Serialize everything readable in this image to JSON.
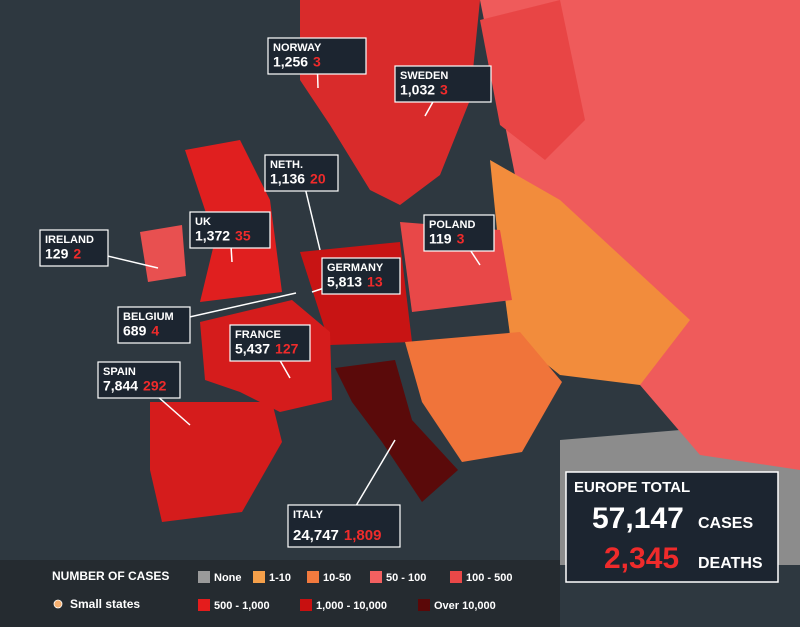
{
  "callouts": [
    {
      "name": "NORWAY",
      "cases": "1,256",
      "deaths": "3"
    },
    {
      "name": "SWEDEN",
      "cases": "1,032",
      "deaths": "3"
    },
    {
      "name": "NETH.",
      "cases": "1,136",
      "deaths": "20"
    },
    {
      "name": "UK",
      "cases": "1,372",
      "deaths": "35"
    },
    {
      "name": "IRELAND",
      "cases": "129",
      "deaths": "2"
    },
    {
      "name": "POLAND",
      "cases": "119",
      "deaths": "3"
    },
    {
      "name": "GERMANY",
      "cases": "5,813",
      "deaths": "13"
    },
    {
      "name": "BELGIUM",
      "cases": "689",
      "deaths": "4"
    },
    {
      "name": "FRANCE",
      "cases": "5,437",
      "deaths": "127"
    },
    {
      "name": "SPAIN",
      "cases": "7,844",
      "deaths": "292"
    },
    {
      "name": "ITALY",
      "cases": "24,747",
      "deaths": "1,809"
    }
  ],
  "total": {
    "title": "EUROPE TOTAL",
    "cases": "57,147",
    "cases_label": "CASES",
    "deaths": "2,345",
    "deaths_label": "DEATHS"
  },
  "legend": {
    "title": "NUMBER OF CASES",
    "small_states": "Small states",
    "items": [
      {
        "label": "None",
        "color": "#9a9a9a"
      },
      {
        "label": "1-10",
        "color": "#f5a04a"
      },
      {
        "label": "10-50",
        "color": "#f27a3e"
      },
      {
        "label": "50 - 100",
        "color": "#f26060"
      },
      {
        "label": "100 - 500",
        "color": "#ea4848"
      },
      {
        "label": "500 - 1,000",
        "color": "#e41c1c"
      },
      {
        "label": "1,000 - 10,000",
        "color": "#c81010"
      },
      {
        "label": "Over 10,000",
        "color": "#5a0808"
      }
    ]
  }
}
